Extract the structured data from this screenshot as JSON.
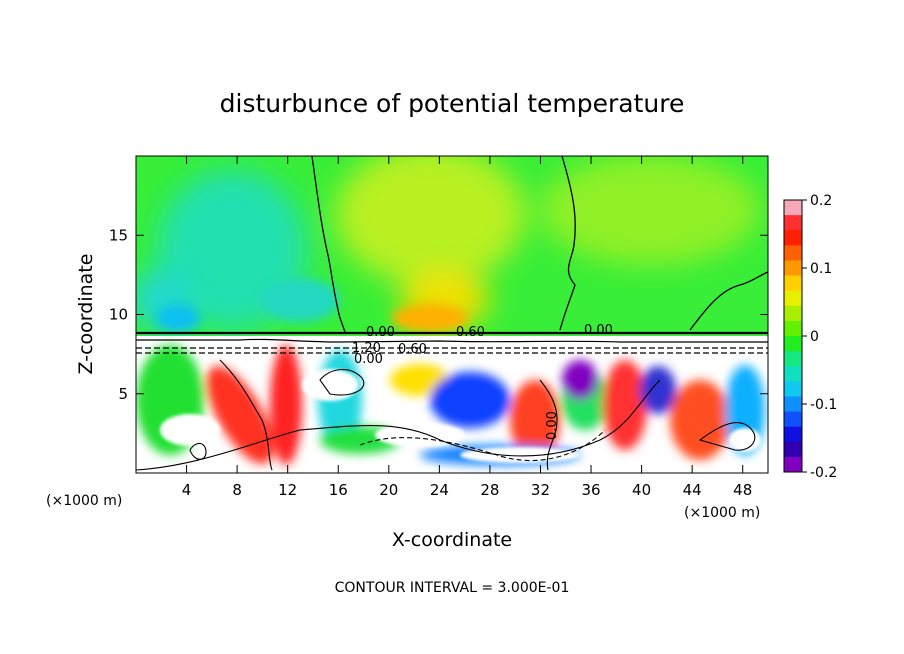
{
  "chart_data": {
    "type": "heatmap",
    "title": "disturbunce of potential temperature",
    "xlabel": "X-coordinate",
    "ylabel": "Z-coordinate",
    "x_unit_left": "(×1000 m)",
    "x_unit_right": "(×1000 m)",
    "footer": "CONTOUR INTERVAL = 3.000E-01",
    "xlim": [
      0,
      50
    ],
    "ylim": [
      0,
      20
    ],
    "x_ticks": [
      4,
      8,
      12,
      16,
      20,
      24,
      28,
      32,
      36,
      40,
      44,
      48
    ],
    "y_ticks": [
      5,
      10,
      15
    ],
    "colorbar": {
      "vmin": -0.2,
      "vmax": 0.2,
      "tick_labels": [
        "0.2",
        "0.1",
        "0",
        "-0.1",
        "-0.2"
      ],
      "tick_values": [
        0.2,
        0.1,
        0,
        -0.1,
        -0.2
      ],
      "colors": [
        "#f7a8b8",
        "#ff3030",
        "#ff2000",
        "#ff6000",
        "#ff9900",
        "#ffd000",
        "#e8f000",
        "#a8f000",
        "#60f000",
        "#20ee20",
        "#18e880",
        "#10e0c0",
        "#10c8f0",
        "#1090ff",
        "#1050ff",
        "#1010e0",
        "#3000b0",
        "#8000c0"
      ]
    },
    "contour_labels": [
      "0.00",
      "0.60",
      "0.00",
      "1.20",
      "0.60",
      "0.00",
      "0.00"
    ],
    "lid_height": 8.7
  }
}
